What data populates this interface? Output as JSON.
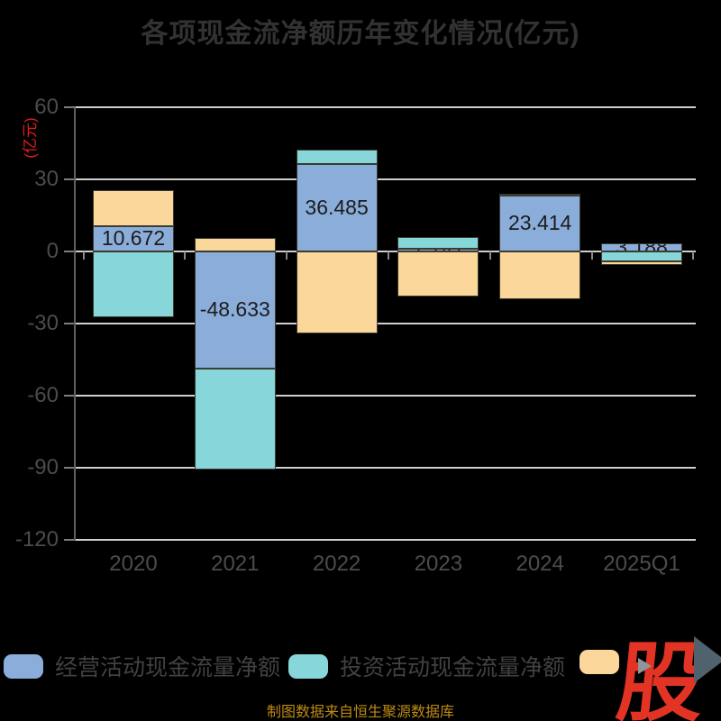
{
  "title": "各项现金流净额历年变化情况(亿元)",
  "y_axis": {
    "unit_label": "(亿元)",
    "unit_color": "#e01d1d",
    "ticks": [
      60,
      30,
      0,
      -30,
      -60,
      -90,
      -120
    ]
  },
  "x_axis": {
    "categories": [
      "2020",
      "2021",
      "2022",
      "2023",
      "2024",
      "2025Q1"
    ]
  },
  "chart_data": {
    "type": "bar",
    "stacked": true,
    "title": "各项现金流净额历年变化情况(亿元)",
    "ylabel": "(亿元)",
    "ylim": [
      -120,
      60
    ],
    "grid": true,
    "legend_position": "bottom",
    "categories": [
      "2020",
      "2021",
      "2022",
      "2023",
      "2024",
      "2025Q1"
    ],
    "series": [
      {
        "name": "经营活动现金流量净额",
        "color": "#8badda",
        "values": [
          10.672,
          -48.633,
          36.485,
          1.141,
          23.414,
          3.188
        ],
        "data_labels": [
          "10.672",
          "-48.633",
          "36.485",
          "1.141",
          "23.414",
          "3.188"
        ],
        "labels_partially_clipped": [
          "2023",
          "2025Q1"
        ]
      },
      {
        "name": "投资活动现金流量净额",
        "color": "#87d6d9",
        "values": [
          -27.4,
          -42.1,
          5.9,
          5.0,
          0.5,
          -4.3
        ]
      },
      {
        "name": "",
        "color": "#fcd79b",
        "values": [
          15.0,
          5.6,
          -34.1,
          -18.7,
          -19.9,
          -1.3
        ]
      }
    ]
  },
  "legend": {
    "items": [
      {
        "label": "经营活动现金流量净额",
        "color": "#8badda"
      },
      {
        "label": "投资活动现金流量净额",
        "color": "#87d6d9"
      },
      {
        "label": "",
        "color": "#fcd79b",
        "label_hidden_by_logo": true
      }
    ]
  },
  "footer": {
    "source_text": "制图数据来自恒生聚源数据库",
    "color": "#bd8b15"
  },
  "logo": {
    "text": "股",
    "color": "#e23325",
    "arrow_color": "#51626f"
  }
}
